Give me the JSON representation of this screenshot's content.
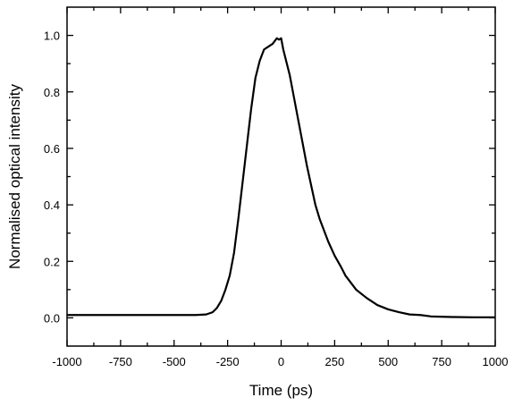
{
  "chart_data": {
    "type": "line",
    "xlabel": "Time (ps)",
    "ylabel": "Normalised optical intensity",
    "xlim": [
      -1000,
      1000
    ],
    "ylim": [
      -0.1,
      1.1
    ],
    "xticks": [
      -1000,
      -750,
      -500,
      -250,
      0,
      250,
      500,
      750,
      1000
    ],
    "xtick_labels": [
      "-1000",
      "-750",
      "-500",
      "-250",
      "0",
      "250",
      "500",
      "750",
      "1000"
    ],
    "yticks": [
      0.0,
      0.2,
      0.4,
      0.6,
      0.8,
      1.0
    ],
    "ytick_labels": [
      "0.0",
      "0.2",
      "0.4",
      "0.6",
      "0.8",
      "1.0"
    ],
    "grid": false,
    "frame": "box",
    "line_color": "#000000",
    "series": [
      {
        "x": [
          -1000,
          -900,
          -800,
          -700,
          -600,
          -500,
          -400,
          -350,
          -320,
          -300,
          -280,
          -260,
          -240,
          -220,
          -200,
          -180,
          -160,
          -140,
          -120,
          -100,
          -80,
          -60,
          -40,
          -30,
          -20,
          -10,
          0,
          10,
          20,
          40,
          60,
          80,
          100,
          120,
          140,
          160,
          180,
          200,
          220,
          250,
          280,
          300,
          350,
          400,
          450,
          500,
          550,
          600,
          650,
          700,
          800,
          900,
          1000
        ],
        "y": [
          0.01,
          0.01,
          0.01,
          0.01,
          0.01,
          0.01,
          0.01,
          0.012,
          0.02,
          0.035,
          0.06,
          0.1,
          0.15,
          0.23,
          0.35,
          0.48,
          0.61,
          0.74,
          0.85,
          0.91,
          0.95,
          0.96,
          0.97,
          0.98,
          0.99,
          0.985,
          0.99,
          0.95,
          0.92,
          0.86,
          0.78,
          0.7,
          0.62,
          0.54,
          0.47,
          0.4,
          0.35,
          0.31,
          0.27,
          0.22,
          0.18,
          0.15,
          0.1,
          0.07,
          0.045,
          0.03,
          0.02,
          0.012,
          0.01,
          0.005,
          0.003,
          0.002,
          0.002
        ]
      }
    ]
  }
}
